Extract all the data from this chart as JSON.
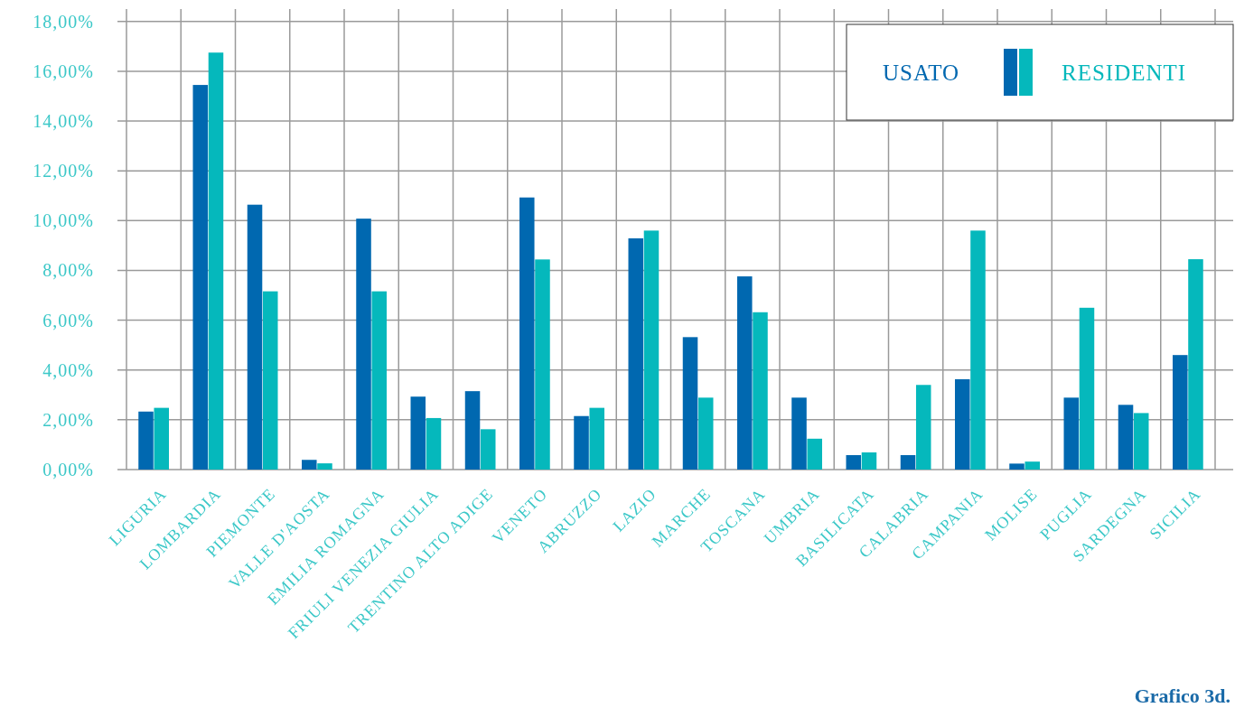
{
  "chart_data": {
    "type": "bar",
    "categories": [
      "LIGURIA",
      "LOMBARDIA",
      "PIEMONTE",
      "VALLE D'AOSTA",
      "EMILIA ROMAGNA",
      "FRIULI VENEZIA GIULIA",
      "TRENTINO ALTO ADIGE",
      "VENETO",
      "ABRUZZO",
      "LAZIO",
      "MARCHE",
      "TOSCANA",
      "UMBRIA",
      "BASILICATA",
      "CALABRIA",
      "CAMPANIA",
      "MOLISE",
      "PUGLIA",
      "SARDEGNA",
      "SICILIA"
    ],
    "series": [
      {
        "name": "USATO",
        "color": "#0068b0",
        "values": [
          2.33,
          15.45,
          10.64,
          0.39,
          10.08,
          2.93,
          3.15,
          10.93,
          2.15,
          9.29,
          5.32,
          7.76,
          2.89,
          0.58,
          0.58,
          3.63,
          0.24,
          2.89,
          2.6,
          4.6
        ]
      },
      {
        "name": "RESIDENTI",
        "color": "#05b8bc",
        "values": [
          2.48,
          16.75,
          7.16,
          0.25,
          7.16,
          2.07,
          1.62,
          8.44,
          2.48,
          9.6,
          2.89,
          6.32,
          1.24,
          0.69,
          3.4,
          9.6,
          0.32,
          6.5,
          2.27,
          8.45
        ]
      }
    ],
    "ylim": [
      0,
      18.5
    ],
    "yticks": [
      {
        "value": 0,
        "label": "0,00%"
      },
      {
        "value": 2,
        "label": "2,00%"
      },
      {
        "value": 4,
        "label": "4,00%"
      },
      {
        "value": 6,
        "label": "6,00%"
      },
      {
        "value": 8,
        "label": "8,00%"
      },
      {
        "value": 10,
        "label": "10,00%"
      },
      {
        "value": 12,
        "label": "12,00%"
      },
      {
        "value": 14,
        "label": "14,00%"
      },
      {
        "value": 16,
        "label": "16,00%"
      },
      {
        "value": 18,
        "label": "18,00%"
      }
    ],
    "grid": true,
    "legend": "top right",
    "annotations": [
      "Grafico 3d."
    ]
  }
}
